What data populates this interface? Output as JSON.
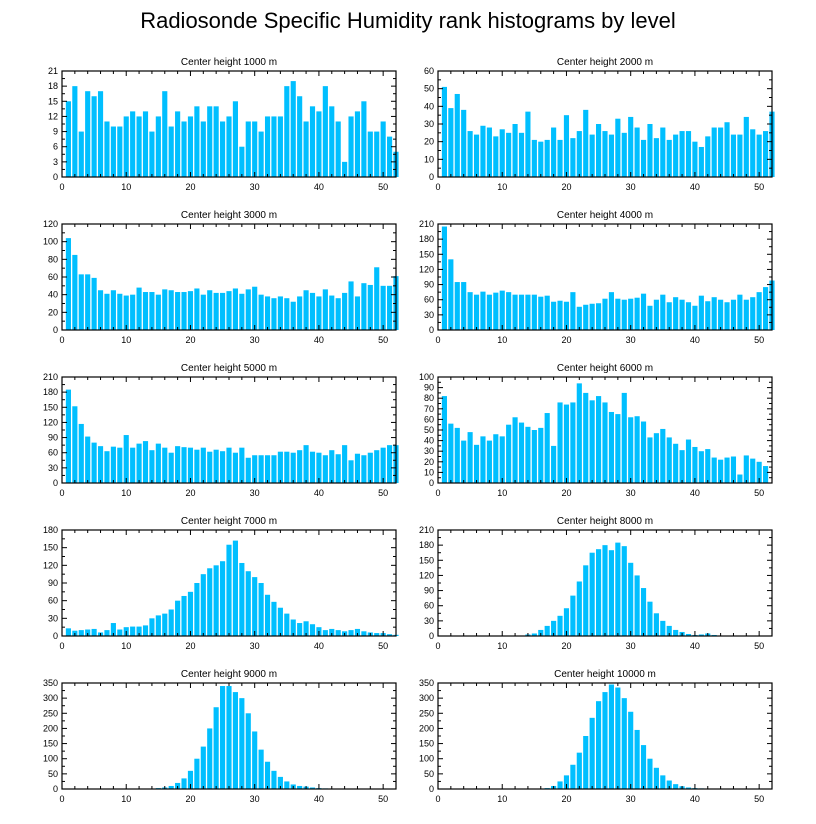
{
  "figure_title": "Radiosonde Specific Humidity rank histograms by level",
  "bar_color": "#00BFFF",
  "chart_data": [
    {
      "type": "bar",
      "title": "Center height 1000 m",
      "x_start": 1,
      "xlim": [
        0,
        52
      ],
      "xticks": [
        0,
        10,
        20,
        30,
        40,
        50
      ],
      "ylim": [
        0,
        21
      ],
      "yticks": [
        0,
        3,
        6,
        9,
        12,
        15,
        18,
        21
      ],
      "values": [
        15,
        18,
        9,
        17,
        16,
        17,
        11,
        10,
        10,
        12,
        13,
        12,
        13,
        9,
        12,
        17,
        10,
        13,
        11,
        12,
        14,
        11,
        14,
        14,
        11,
        12,
        15,
        6,
        11,
        11,
        9,
        12,
        12,
        12,
        18,
        19,
        16,
        11,
        14,
        13,
        18,
        14,
        11,
        3,
        12,
        13,
        15,
        9,
        9,
        11,
        8,
        5
      ]
    },
    {
      "type": "bar",
      "title": "Center height 2000 m",
      "x_start": 1,
      "xlim": [
        0,
        52
      ],
      "xticks": [
        0,
        10,
        20,
        30,
        40,
        50
      ],
      "ylim": [
        0,
        60
      ],
      "yticks": [
        0,
        10,
        20,
        30,
        40,
        50,
        60
      ],
      "values": [
        51,
        39,
        47,
        38,
        26,
        24,
        29,
        28,
        23,
        27,
        25,
        30,
        25,
        37,
        21,
        20,
        21,
        28,
        21,
        35,
        22,
        26,
        38,
        24,
        30,
        26,
        24,
        33,
        25,
        34,
        28,
        21,
        30,
        22,
        28,
        21,
        24,
        26,
        26,
        20,
        17,
        23,
        28,
        28,
        31,
        24,
        24,
        34,
        27,
        24,
        26,
        37
      ]
    },
    {
      "type": "bar",
      "title": "Center height 3000 m",
      "x_start": 1,
      "xlim": [
        0,
        52
      ],
      "xticks": [
        0,
        10,
        20,
        30,
        40,
        50
      ],
      "ylim": [
        0,
        120
      ],
      "yticks": [
        0,
        20,
        40,
        60,
        80,
        100,
        120
      ],
      "values": [
        104,
        85,
        63,
        63,
        59,
        45,
        41,
        45,
        41,
        39,
        40,
        48,
        43,
        43,
        40,
        46,
        45,
        43,
        43,
        44,
        47,
        40,
        45,
        42,
        42,
        44,
        47,
        41,
        46,
        49,
        40,
        38,
        36,
        38,
        36,
        32,
        38,
        45,
        42,
        38,
        46,
        39,
        36,
        42,
        55,
        38,
        53,
        51,
        71,
        50,
        50,
        61
      ]
    },
    {
      "type": "bar",
      "title": "Center height 4000 m",
      "x_start": 1,
      "xlim": [
        0,
        52
      ],
      "xticks": [
        0,
        10,
        20,
        30,
        40,
        50
      ],
      "ylim": [
        0,
        210
      ],
      "yticks": [
        0,
        30,
        60,
        90,
        120,
        150,
        180,
        210
      ],
      "values": [
        205,
        140,
        95,
        95,
        75,
        70,
        76,
        70,
        74,
        78,
        75,
        70,
        70,
        70,
        70,
        66,
        68,
        56,
        58,
        56,
        75,
        46,
        50,
        52,
        53,
        62,
        75,
        62,
        60,
        62,
        64,
        72,
        48,
        60,
        70,
        55,
        65,
        60,
        55,
        48,
        68,
        57,
        65,
        60,
        55,
        60,
        70,
        60,
        65,
        75,
        85,
        98
      ]
    },
    {
      "type": "bar",
      "title": "Center height 5000 m",
      "x_start": 1,
      "xlim": [
        0,
        52
      ],
      "xticks": [
        0,
        10,
        20,
        30,
        40,
        50
      ],
      "ylim": [
        0,
        210
      ],
      "yticks": [
        0,
        30,
        60,
        90,
        120,
        150,
        180,
        210
      ],
      "values": [
        185,
        152,
        117,
        92,
        80,
        73,
        63,
        72,
        70,
        95,
        70,
        78,
        83,
        65,
        78,
        70,
        60,
        73,
        71,
        70,
        66,
        70,
        62,
        66,
        63,
        70,
        60,
        70,
        50,
        55,
        55,
        55,
        55,
        62,
        62,
        60,
        65,
        75,
        62,
        60,
        55,
        65,
        57,
        75,
        45,
        58,
        55,
        60,
        65,
        70,
        75,
        75
      ]
    },
    {
      "type": "bar",
      "title": "Center height 6000 m",
      "x_start": 1,
      "xlim": [
        0,
        52
      ],
      "xticks": [
        0,
        10,
        20,
        30,
        40,
        50
      ],
      "ylim": [
        0,
        100
      ],
      "yticks": [
        0,
        10,
        20,
        30,
        40,
        50,
        60,
        70,
        80,
        90,
        100
      ],
      "values": [
        82,
        56,
        52,
        40,
        48,
        36,
        44,
        40,
        46,
        44,
        55,
        62,
        57,
        53,
        50,
        52,
        66,
        35,
        76,
        74,
        76,
        94,
        85,
        78,
        82,
        76,
        67,
        65,
        85,
        62,
        63,
        58,
        43,
        47,
        51,
        43,
        37,
        31,
        41,
        34,
        30,
        32,
        24,
        22,
        24,
        25,
        8,
        26,
        23,
        20,
        16
      ]
    },
    {
      "type": "bar",
      "title": "Center height 7000 m",
      "x_start": 1,
      "xlim": [
        0,
        52
      ],
      "xticks": [
        0,
        10,
        20,
        30,
        40,
        50
      ],
      "ylim": [
        0,
        180
      ],
      "yticks": [
        0,
        30,
        60,
        90,
        120,
        150,
        180
      ],
      "values": [
        13,
        9,
        10,
        11,
        12,
        6,
        10,
        22,
        11,
        15,
        16,
        16,
        18,
        30,
        35,
        38,
        45,
        60,
        68,
        75,
        90,
        105,
        115,
        120,
        127,
        155,
        162,
        124,
        110,
        100,
        90,
        70,
        58,
        48,
        38,
        28,
        22,
        25,
        20,
        15,
        10,
        12,
        10,
        8,
        10,
        12,
        8,
        6,
        5,
        5,
        3,
        2
      ]
    },
    {
      "type": "bar",
      "title": "Center height 8000 m",
      "x_start": 1,
      "xlim": [
        0,
        52
      ],
      "xticks": [
        0,
        10,
        20,
        30,
        40,
        50
      ],
      "ylim": [
        0,
        210
      ],
      "yticks": [
        0,
        30,
        60,
        90,
        120,
        150,
        180,
        210
      ],
      "values": [
        0,
        0,
        0,
        0,
        0,
        0,
        0,
        0,
        0,
        0,
        0,
        0,
        0,
        3,
        5,
        12,
        20,
        30,
        40,
        55,
        80,
        108,
        140,
        165,
        172,
        180,
        170,
        185,
        178,
        145,
        120,
        95,
        68,
        45,
        30,
        20,
        12,
        8,
        4,
        2,
        3,
        5,
        2,
        1,
        0,
        0,
        0,
        0,
        0,
        0,
        0,
        0
      ]
    },
    {
      "type": "bar",
      "title": "Center height 9000 m",
      "x_start": 1,
      "xlim": [
        0,
        52
      ],
      "xticks": [
        0,
        10,
        20,
        30,
        40,
        50
      ],
      "ylim": [
        0,
        350
      ],
      "yticks": [
        0,
        50,
        100,
        150,
        200,
        250,
        300,
        350
      ],
      "values": [
        0,
        0,
        0,
        0,
        0,
        0,
        0,
        0,
        0,
        0,
        0,
        0,
        0,
        0,
        3,
        5,
        10,
        20,
        35,
        60,
        100,
        140,
        200,
        270,
        340,
        340,
        320,
        300,
        250,
        190,
        130,
        90,
        60,
        40,
        25,
        15,
        10,
        8,
        5,
        3,
        2,
        1,
        1,
        0,
        0,
        0,
        0,
        0,
        0,
        0,
        0,
        0
      ]
    },
    {
      "type": "bar",
      "title": "Center height 10000 m",
      "x_start": 1,
      "xlim": [
        0,
        52
      ],
      "xticks": [
        0,
        10,
        20,
        30,
        40,
        50
      ],
      "ylim": [
        0,
        350
      ],
      "yticks": [
        0,
        50,
        100,
        150,
        200,
        250,
        300,
        350
      ],
      "values": [
        0,
        0,
        0,
        0,
        0,
        0,
        0,
        0,
        0,
        0,
        0,
        0,
        0,
        0,
        0,
        0,
        3,
        10,
        25,
        45,
        80,
        120,
        175,
        235,
        290,
        320,
        345,
        335,
        300,
        255,
        195,
        145,
        100,
        70,
        45,
        28,
        16,
        9,
        5,
        3,
        2,
        1,
        0,
        0,
        0,
        0,
        0,
        0,
        0,
        0,
        0,
        0
      ]
    }
  ]
}
